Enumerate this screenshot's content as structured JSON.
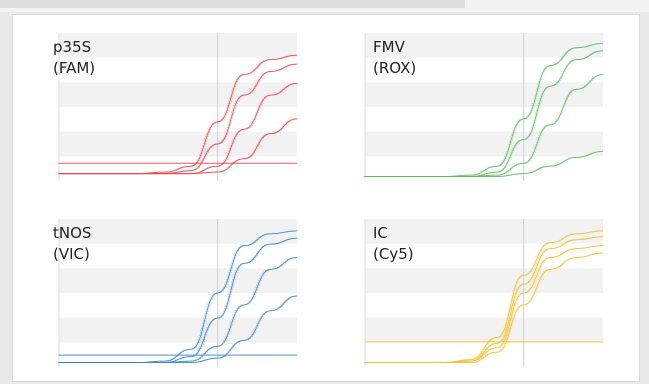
{
  "chart_data": [
    {
      "type": "line",
      "title": "p35S",
      "subtitle": "(FAM)",
      "color": "#e8474e",
      "x": [
        0,
        5,
        10,
        15,
        20,
        25,
        30,
        35,
        40,
        45
      ],
      "series": [
        {
          "values": [
            0.05,
            0.05,
            0.05,
            0.05,
            0.06,
            0.1,
            0.4,
            0.72,
            0.82,
            0.85
          ]
        },
        {
          "values": [
            0.05,
            0.05,
            0.05,
            0.05,
            0.05,
            0.07,
            0.25,
            0.58,
            0.74,
            0.79
          ]
        },
        {
          "values": [
            0.05,
            0.05,
            0.05,
            0.05,
            0.05,
            0.05,
            0.1,
            0.35,
            0.58,
            0.66
          ]
        },
        {
          "values": [
            0.05,
            0.05,
            0.05,
            0.05,
            0.05,
            0.05,
            0.06,
            0.15,
            0.32,
            0.42
          ]
        },
        {
          "values": [
            0.12,
            0.12,
            0.12,
            0.12,
            0.12,
            0.12,
            0.12,
            0.12,
            0.12,
            0.12
          ]
        }
      ]
    },
    {
      "type": "line",
      "title": "FMV",
      "subtitle": "(ROX)",
      "color": "#5cba5f",
      "x": [
        0,
        5,
        10,
        15,
        20,
        25,
        30,
        35,
        40,
        45
      ],
      "series": [
        {
          "values": [
            0.03,
            0.03,
            0.03,
            0.03,
            0.04,
            0.1,
            0.42,
            0.78,
            0.9,
            0.93
          ]
        },
        {
          "values": [
            0.03,
            0.03,
            0.03,
            0.03,
            0.03,
            0.06,
            0.28,
            0.64,
            0.82,
            0.88
          ]
        },
        {
          "values": [
            0.03,
            0.03,
            0.03,
            0.03,
            0.03,
            0.04,
            0.12,
            0.38,
            0.62,
            0.72
          ]
        },
        {
          "values": [
            0.03,
            0.03,
            0.03,
            0.03,
            0.03,
            0.03,
            0.05,
            0.1,
            0.16,
            0.2
          ]
        }
      ]
    },
    {
      "type": "line",
      "title": "tNOS",
      "subtitle": "(VIC)",
      "color": "#3a86c8",
      "x": [
        0,
        5,
        10,
        15,
        20,
        25,
        30,
        35,
        40,
        45
      ],
      "series": [
        {
          "values": [
            0.03,
            0.03,
            0.03,
            0.03,
            0.04,
            0.12,
            0.5,
            0.82,
            0.9,
            0.92
          ]
        },
        {
          "values": [
            0.03,
            0.03,
            0.03,
            0.03,
            0.03,
            0.07,
            0.33,
            0.7,
            0.83,
            0.87
          ]
        },
        {
          "values": [
            0.03,
            0.03,
            0.03,
            0.03,
            0.03,
            0.04,
            0.14,
            0.42,
            0.66,
            0.74
          ]
        },
        {
          "values": [
            0.03,
            0.03,
            0.03,
            0.03,
            0.03,
            0.03,
            0.06,
            0.18,
            0.38,
            0.48
          ]
        },
        {
          "values": [
            0.08,
            0.08,
            0.08,
            0.08,
            0.08,
            0.08,
            0.08,
            0.08,
            0.08,
            0.08
          ]
        }
      ]
    },
    {
      "type": "line",
      "title": "IC",
      "subtitle": "(Cy5)",
      "color": "#f2c12e",
      "x": [
        0,
        5,
        10,
        15,
        20,
        25,
        30,
        35,
        40,
        45
      ],
      "series": [
        {
          "values": [
            0.03,
            0.03,
            0.03,
            0.03,
            0.05,
            0.2,
            0.62,
            0.84,
            0.9,
            0.92
          ]
        },
        {
          "values": [
            0.03,
            0.03,
            0.03,
            0.03,
            0.04,
            0.16,
            0.56,
            0.8,
            0.86,
            0.88
          ]
        },
        {
          "values": [
            0.03,
            0.03,
            0.03,
            0.03,
            0.04,
            0.13,
            0.5,
            0.74,
            0.8,
            0.82
          ]
        },
        {
          "values": [
            0.03,
            0.03,
            0.03,
            0.03,
            0.03,
            0.1,
            0.42,
            0.66,
            0.74,
            0.77
          ]
        },
        {
          "values": [
            0.17,
            0.17,
            0.17,
            0.17,
            0.17,
            0.17,
            0.17,
            0.17,
            0.17,
            0.17
          ]
        }
      ]
    }
  ]
}
